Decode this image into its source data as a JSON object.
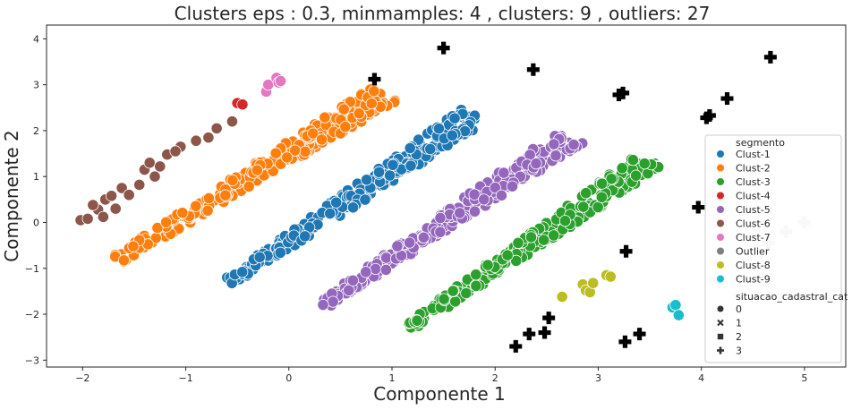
{
  "chart_data": {
    "type": "scatter",
    "title": "Clusters  eps : 0.3, minmamples: 4 , clusters: 9 , outliers: 27",
    "xlabel": "Componente 1",
    "ylabel": "Componente 2",
    "xlim": [
      -2.35,
      5.4
    ],
    "ylim": [
      -3.15,
      4.3
    ],
    "xticks": [
      -2,
      -1,
      0,
      1,
      2,
      3,
      4,
      5
    ],
    "yticks": [
      -3,
      -2,
      -1,
      0,
      1,
      2,
      3,
      4
    ],
    "xtick_labels": [
      "−2",
      "−1",
      "0",
      "1",
      "2",
      "3",
      "4",
      "5"
    ],
    "ytick_labels": [
      "−3",
      "−2",
      "−1",
      "0",
      "1",
      "2",
      "3",
      "4"
    ],
    "grid": false,
    "legend_position": "right",
    "legend": {
      "hue_title": "segmento",
      "hue_entries": [
        {
          "label": "Clust-1",
          "color": "#1f77b4"
        },
        {
          "label": "Clust-2",
          "color": "#ff7f0e"
        },
        {
          "label": "Clust-3",
          "color": "#2ca02c"
        },
        {
          "label": "Clust-4",
          "color": "#d62728"
        },
        {
          "label": "Clust-5",
          "color": "#9467bd"
        },
        {
          "label": "Clust-6",
          "color": "#8c564b"
        },
        {
          "label": "Clust-7",
          "color": "#e377c2"
        },
        {
          "label": "Outlier",
          "color": "#7f7f7f"
        },
        {
          "label": "Clust-8",
          "color": "#bcbd22"
        },
        {
          "label": "Clust-9",
          "color": "#17becf"
        }
      ],
      "style_title": "situacao_cadastral_cat",
      "style_entries": [
        {
          "label": "0",
          "marker": "circle"
        },
        {
          "label": "1",
          "marker": "x"
        },
        {
          "label": "2",
          "marker": "square"
        },
        {
          "label": "3",
          "marker": "plus"
        }
      ]
    },
    "bands": [
      {
        "name": "Clust-2",
        "color": "#ff7f0e",
        "start": [
          -1.65,
          -0.8
        ],
        "end": [
          0.92,
          2.8
        ],
        "width": 0.14
      },
      {
        "name": "Clust-1",
        "color": "#1f77b4",
        "start": [
          -0.58,
          -1.3
        ],
        "end": [
          1.8,
          2.35
        ],
        "width": 0.13
      },
      {
        "name": "Clust-5",
        "color": "#9467bd",
        "start": [
          0.33,
          -1.8
        ],
        "end": [
          2.72,
          1.85
        ],
        "width": 0.13
      },
      {
        "name": "Clust-3",
        "color": "#2ca02c",
        "start": [
          1.17,
          -2.28
        ],
        "end": [
          3.5,
          1.35
        ],
        "width": 0.13
      }
    ],
    "points": [
      {
        "series": "Clust-6",
        "x": -2.02,
        "y": 0.05
      },
      {
        "series": "Clust-6",
        "x": -1.95,
        "y": 0.08
      },
      {
        "series": "Clust-6",
        "x": -1.85,
        "y": 0.28
      },
      {
        "series": "Clust-6",
        "x": -1.9,
        "y": 0.38
      },
      {
        "series": "Clust-6",
        "x": -1.78,
        "y": 0.5
      },
      {
        "series": "Clust-6",
        "x": -1.72,
        "y": 0.58
      },
      {
        "series": "Clust-6",
        "x": -1.62,
        "y": 0.75
      },
      {
        "series": "Clust-6",
        "x": -1.8,
        "y": 0.12
      },
      {
        "series": "Clust-6",
        "x": -1.68,
        "y": 0.3
      },
      {
        "series": "Clust-6",
        "x": -1.45,
        "y": 0.82
      },
      {
        "series": "Clust-6",
        "x": -1.4,
        "y": 1.15
      },
      {
        "series": "Clust-6",
        "x": -1.35,
        "y": 1.3
      },
      {
        "series": "Clust-6",
        "x": -1.25,
        "y": 1.22
      },
      {
        "series": "Clust-6",
        "x": -1.18,
        "y": 1.48
      },
      {
        "series": "Clust-6",
        "x": -1.05,
        "y": 1.65
      },
      {
        "series": "Clust-6",
        "x": -1.1,
        "y": 1.55
      },
      {
        "series": "Clust-6",
        "x": -0.9,
        "y": 1.78
      },
      {
        "series": "Clust-6",
        "x": -0.78,
        "y": 1.85
      },
      {
        "series": "Clust-6",
        "x": -0.55,
        "y": 2.2
      },
      {
        "series": "Clust-6",
        "x": -0.7,
        "y": 2.05
      },
      {
        "series": "Clust-6",
        "x": -1.3,
        "y": 1.0
      },
      {
        "series": "Clust-6",
        "x": -1.55,
        "y": 0.6
      },
      {
        "series": "Clust-4",
        "x": -0.5,
        "y": 2.6
      },
      {
        "series": "Clust-4",
        "x": -0.45,
        "y": 2.57
      },
      {
        "series": "Clust-7",
        "x": -0.22,
        "y": 2.85
      },
      {
        "series": "Clust-7",
        "x": -0.2,
        "y": 3.0
      },
      {
        "series": "Clust-7",
        "x": -0.12,
        "y": 3.15
      },
      {
        "series": "Clust-7",
        "x": -0.1,
        "y": 3.05
      },
      {
        "series": "Clust-7",
        "x": -0.08,
        "y": 3.08
      },
      {
        "series": "Clust-8",
        "x": 2.65,
        "y": -1.62
      },
      {
        "series": "Clust-8",
        "x": 2.85,
        "y": -1.35
      },
      {
        "series": "Clust-8",
        "x": 2.88,
        "y": -1.48
      },
      {
        "series": "Clust-8",
        "x": 2.92,
        "y": -1.52
      },
      {
        "series": "Clust-8",
        "x": 2.95,
        "y": -1.32
      },
      {
        "series": "Clust-8",
        "x": 3.08,
        "y": -1.15
      },
      {
        "series": "Clust-8",
        "x": 3.12,
        "y": -1.18
      },
      {
        "series": "Clust-9",
        "x": 3.72,
        "y": -1.85
      },
      {
        "series": "Clust-9",
        "x": 3.75,
        "y": -1.8
      },
      {
        "series": "Clust-9",
        "x": 3.78,
        "y": -2.02
      }
    ],
    "outlier_points": [
      {
        "style": "3",
        "x": 0.83,
        "y": 3.12
      },
      {
        "style": "3",
        "x": 1.5,
        "y": 3.8
      },
      {
        "style": "3",
        "x": 2.37,
        "y": 3.33
      },
      {
        "style": "3",
        "x": 3.2,
        "y": 2.78
      },
      {
        "style": "3",
        "x": 3.24,
        "y": 2.82
      },
      {
        "style": "3",
        "x": 4.67,
        "y": 3.6
      },
      {
        "style": "3",
        "x": 4.05,
        "y": 2.28
      },
      {
        "style": "3",
        "x": 4.08,
        "y": 2.33
      },
      {
        "style": "3",
        "x": 4.25,
        "y": 2.7
      },
      {
        "style": "3",
        "x": 3.97,
        "y": 0.33
      },
      {
        "style": "3",
        "x": 3.27,
        "y": -0.63
      },
      {
        "style": "3",
        "x": 2.2,
        "y": -2.7
      },
      {
        "style": "3",
        "x": 2.33,
        "y": -2.43
      },
      {
        "style": "3",
        "x": 2.48,
        "y": -2.4
      },
      {
        "style": "3",
        "x": 2.52,
        "y": -2.08
      },
      {
        "style": "3",
        "x": 3.26,
        "y": -2.6
      },
      {
        "style": "3",
        "x": 3.4,
        "y": -2.43
      },
      {
        "style": "3b",
        "x": 4.65,
        "y": -0.45
      },
      {
        "style": "3b",
        "x": 4.82,
        "y": -0.2
      },
      {
        "style": "3b",
        "x": 5.0,
        "y": 0.0
      }
    ]
  }
}
